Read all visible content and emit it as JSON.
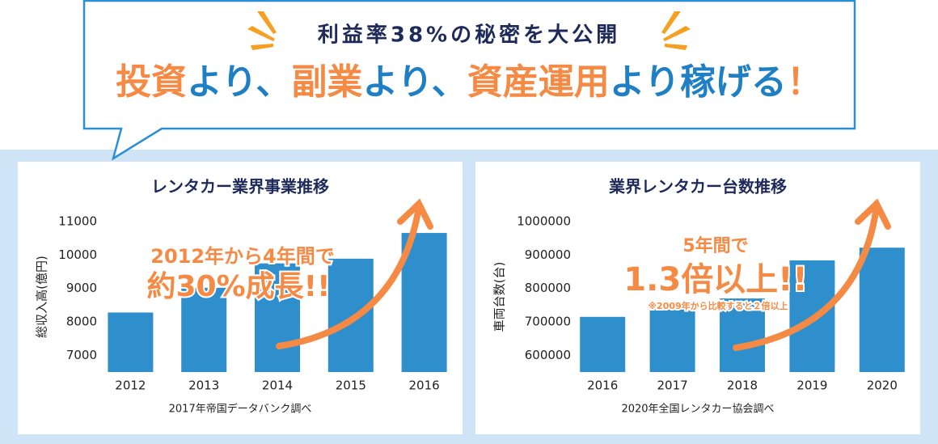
{
  "header": {
    "kicker": "利益率38%の秘密を大公開",
    "headline_parts": [
      {
        "text": "投資",
        "color": "#f58a45"
      },
      {
        "text": "より、",
        "color": "#1f7fc4"
      },
      {
        "text": "副業",
        "color": "#f58a45"
      },
      {
        "text": "より、",
        "color": "#1f7fc4"
      },
      {
        "text": "資産運用",
        "color": "#f58a45"
      },
      {
        "text": "より",
        "color": "#1f7fc4"
      },
      {
        "text": "稼げる",
        "color": "#1f7fc4"
      },
      {
        "text": "！",
        "color": "#f58a45"
      }
    ]
  },
  "chart_data": [
    {
      "type": "bar",
      "title": "レンタカー業界事業推移",
      "y_label": "総収入高(億円)",
      "categories": [
        "2012",
        "2013",
        "2014",
        "2015",
        "2016"
      ],
      "values": [
        8280,
        9020,
        9750,
        9890,
        10660
      ],
      "color": "#2f8fcd",
      "ylim": [
        6500,
        11000
      ],
      "yticks": [
        7000,
        8000,
        9000,
        10000,
        11000
      ],
      "annotations": [
        "2012年から4年間で",
        "約30%成長!!"
      ],
      "source": "2017年帝国データバンク調べ"
    },
    {
      "type": "bar",
      "title": "業界レンタカー台数推移",
      "y_label": "車両台数(台)",
      "categories": [
        "2016",
        "2017",
        "2018",
        "2019",
        "2020"
      ],
      "values": [
        715000,
        745000,
        770000,
        884000,
        922000
      ],
      "color": "#2f8fcd",
      "ylim": [
        550000,
        1000000
      ],
      "yticks": [
        600000,
        700000,
        800000,
        900000,
        1000000
      ],
      "annotations": [
        "5年間で",
        "1.3倍以上!!",
        "※2009年から比較すると２倍以上"
      ],
      "source": "2020年全国レンタカー協会調べ"
    }
  ]
}
